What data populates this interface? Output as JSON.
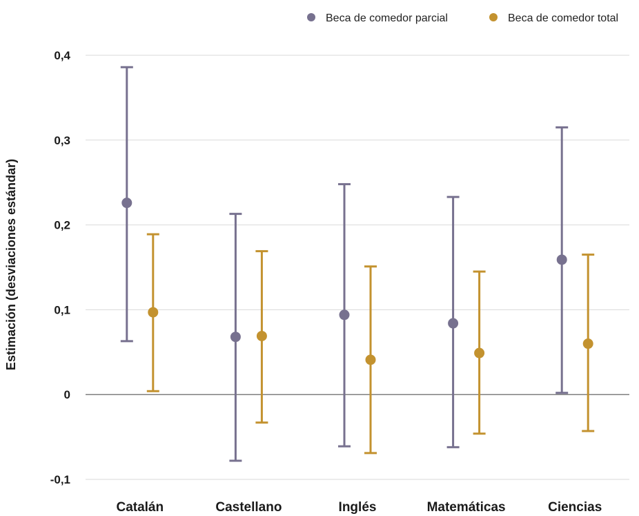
{
  "chart_data": {
    "type": "errorbar",
    "title": "",
    "xlabel": "",
    "ylabel": "Estimación (desviaciones estándar)",
    "ylim": [
      -0.1,
      0.4
    ],
    "yticks": [
      -0.1,
      0,
      0.1,
      0.2,
      0.3,
      0.4
    ],
    "ytick_labels": [
      "-0,1",
      "0",
      "0,1",
      "0,2",
      "0,3",
      "0,4"
    ],
    "grid": true,
    "legend_position": "top-right",
    "categories": [
      "Catalán",
      "Castellano",
      "Inglés",
      "Matemáticas",
      "Ciencias"
    ],
    "series": [
      {
        "name": "Beca de comedor parcial",
        "color": "#77718f",
        "values": [
          0.226,
          0.068,
          0.094,
          0.084,
          0.159
        ],
        "lower": [
          0.063,
          -0.078,
          -0.061,
          -0.062,
          0.002
        ],
        "upper": [
          0.386,
          0.213,
          0.248,
          0.233,
          0.315
        ]
      },
      {
        "name": "Beca de comedor total",
        "color": "#c3922f",
        "values": [
          0.097,
          0.069,
          0.041,
          0.049,
          0.06
        ],
        "lower": [
          0.004,
          -0.033,
          -0.069,
          -0.046,
          -0.043
        ],
        "upper": [
          0.189,
          0.169,
          0.151,
          0.145,
          0.165
        ]
      }
    ]
  }
}
